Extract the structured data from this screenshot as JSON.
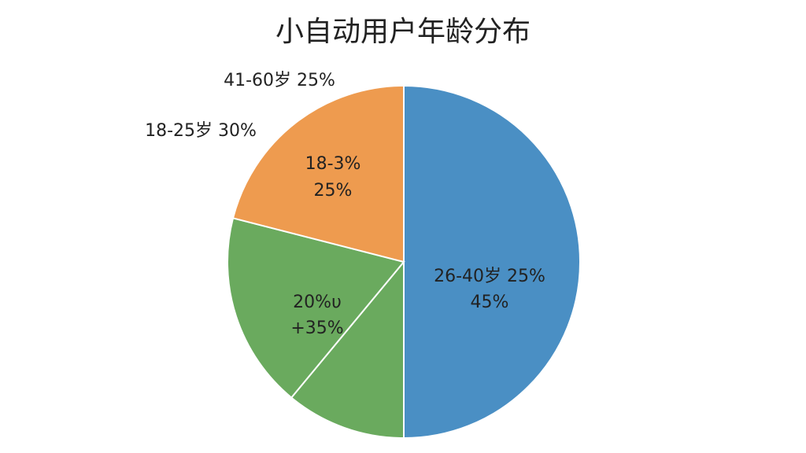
{
  "chart_data": {
    "type": "pie",
    "title": "小自动用户年龄分布",
    "values": [
      50,
      11,
      18,
      21
    ],
    "colors": [
      "#4a8fc4",
      "#6aaa5e",
      "#6aaa5e",
      "#ee9b4f"
    ],
    "annotations": [
      "41-60岁 25%",
      "18-25岁 30%",
      "18-3%",
      "25%",
      "26-40岁 25%",
      "45%",
      "20%υ",
      "+35%"
    ]
  }
}
